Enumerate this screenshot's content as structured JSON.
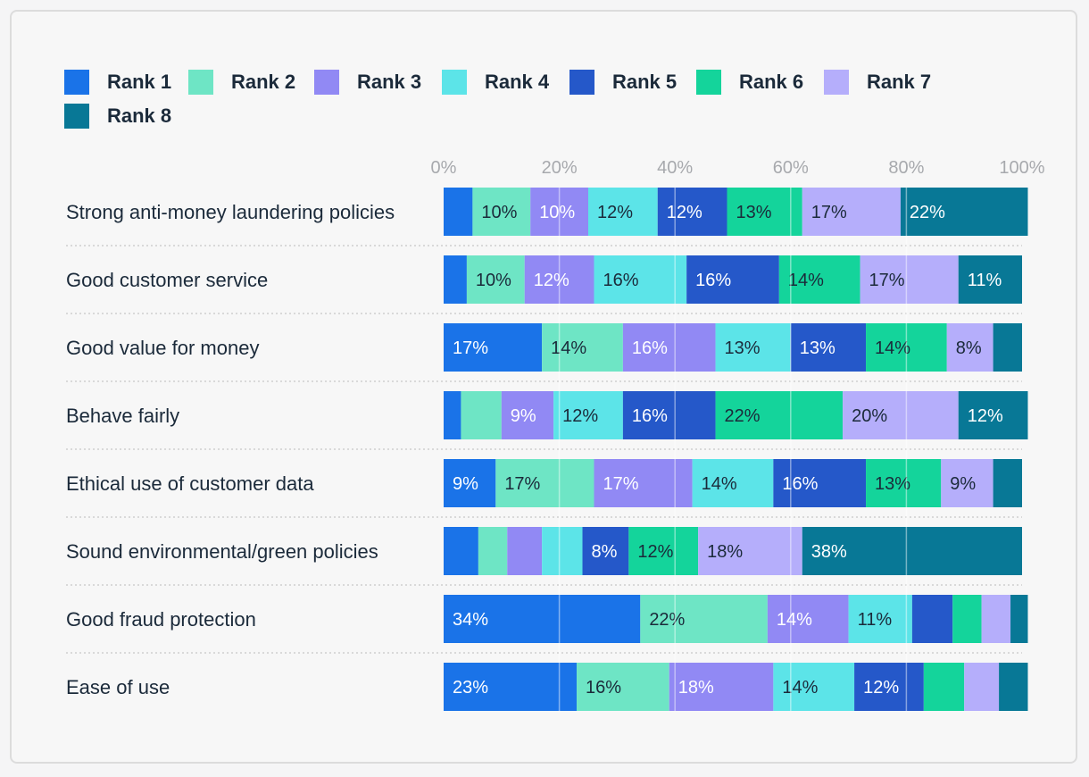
{
  "chart_data": {
    "type": "bar",
    "orientation": "horizontal",
    "stacked": true,
    "title": "",
    "xlabel": "",
    "ylabel": "",
    "xlim": [
      0,
      100
    ],
    "ticks": [
      "0%",
      "20%",
      "40%",
      "60%",
      "80%",
      "100%"
    ],
    "legend_position": "top",
    "categories": [
      "Strong anti-money laundering policies",
      "Good customer service",
      "Good value for money",
      "Behave fairly",
      "Ethical use of customer data",
      "Sound environmental/green policies",
      "Good fraud protection",
      "Ease of use"
    ],
    "series": [
      {
        "name": "Rank 1",
        "color": "#1a73e8",
        "label_color": "#ffffff",
        "values": [
          5,
          4,
          17,
          3,
          9,
          6,
          34,
          23
        ],
        "labels": [
          "",
          "",
          "17%",
          "",
          "9%",
          "",
          "34%",
          "23%"
        ]
      },
      {
        "name": "Rank 2",
        "color": "#6ee5c5",
        "label_color": "#1b2a3a",
        "values": [
          10,
          10,
          14,
          7,
          17,
          5,
          22,
          16
        ],
        "labels": [
          "10%",
          "10%",
          "14%",
          "",
          "17%",
          "",
          "22%",
          "16%"
        ]
      },
      {
        "name": "Rank 3",
        "color": "#9189f4",
        "label_color": "#ffffff",
        "values": [
          10,
          12,
          16,
          9,
          17,
          6,
          14,
          18
        ],
        "labels": [
          "10%",
          "12%",
          "16%",
          "9%",
          "17%",
          "",
          "14%",
          "18%"
        ]
      },
      {
        "name": "Rank 4",
        "color": "#5ce4e8",
        "label_color": "#1b2a3a",
        "values": [
          12,
          16,
          13,
          12,
          14,
          7,
          11,
          14
        ],
        "labels": [
          "12%",
          "16%",
          "13%",
          "12%",
          "14%",
          "",
          "11%",
          "14%"
        ]
      },
      {
        "name": "Rank 5",
        "color": "#2558c9",
        "label_color": "#ffffff",
        "values": [
          12,
          16,
          13,
          16,
          16,
          8,
          7,
          12
        ],
        "labels": [
          "12%",
          "16%",
          "13%",
          "16%",
          "16%",
          "8%",
          "",
          "12%"
        ]
      },
      {
        "name": "Rank 6",
        "color": "#14d49b",
        "label_color": "#1b2a3a",
        "values": [
          13,
          14,
          14,
          22,
          13,
          12,
          5,
          7
        ],
        "labels": [
          "13%",
          "14%",
          "14%",
          "22%",
          "13%",
          "12%",
          "",
          ""
        ]
      },
      {
        "name": "Rank 7",
        "color": "#b5aefb",
        "label_color": "#1b2a3a",
        "values": [
          17,
          17,
          8,
          20,
          9,
          18,
          5,
          6
        ],
        "labels": [
          "17%",
          "17%",
          "8%",
          "20%",
          "9%",
          "18%",
          "",
          ""
        ]
      },
      {
        "name": "Rank 8",
        "color": "#087896",
        "label_color": "#ffffff",
        "values": [
          22,
          11,
          5,
          12,
          5,
          38,
          3,
          5
        ],
        "labels": [
          "22%",
          "11%",
          "",
          "12%",
          "",
          "38%",
          "",
          ""
        ]
      }
    ]
  }
}
